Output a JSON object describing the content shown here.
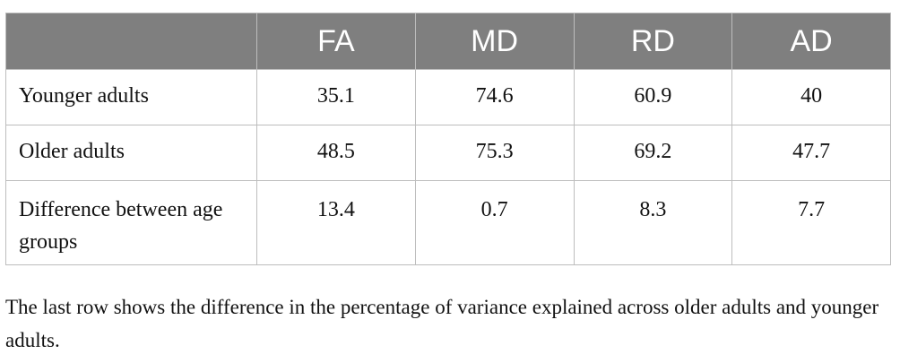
{
  "table": {
    "headers": [
      "",
      "FA",
      "MD",
      "RD",
      "AD"
    ],
    "rows": [
      {
        "label": "Younger adults",
        "values": [
          "35.1",
          "74.6",
          "60.9",
          "40"
        ]
      },
      {
        "label": "Older adults",
        "values": [
          "48.5",
          "75.3",
          "69.2",
          "47.7"
        ]
      },
      {
        "label": "Difference between age groups",
        "values": [
          "13.4",
          "0.7",
          "8.3",
          "7.7"
        ]
      }
    ]
  },
  "footnote": "The last row shows the difference in the percentage of variance explained across older adults and younger adults.",
  "colors": {
    "header_bg": "#7f7f7f",
    "header_text": "#ffffff",
    "border": "#bdbdbd"
  }
}
